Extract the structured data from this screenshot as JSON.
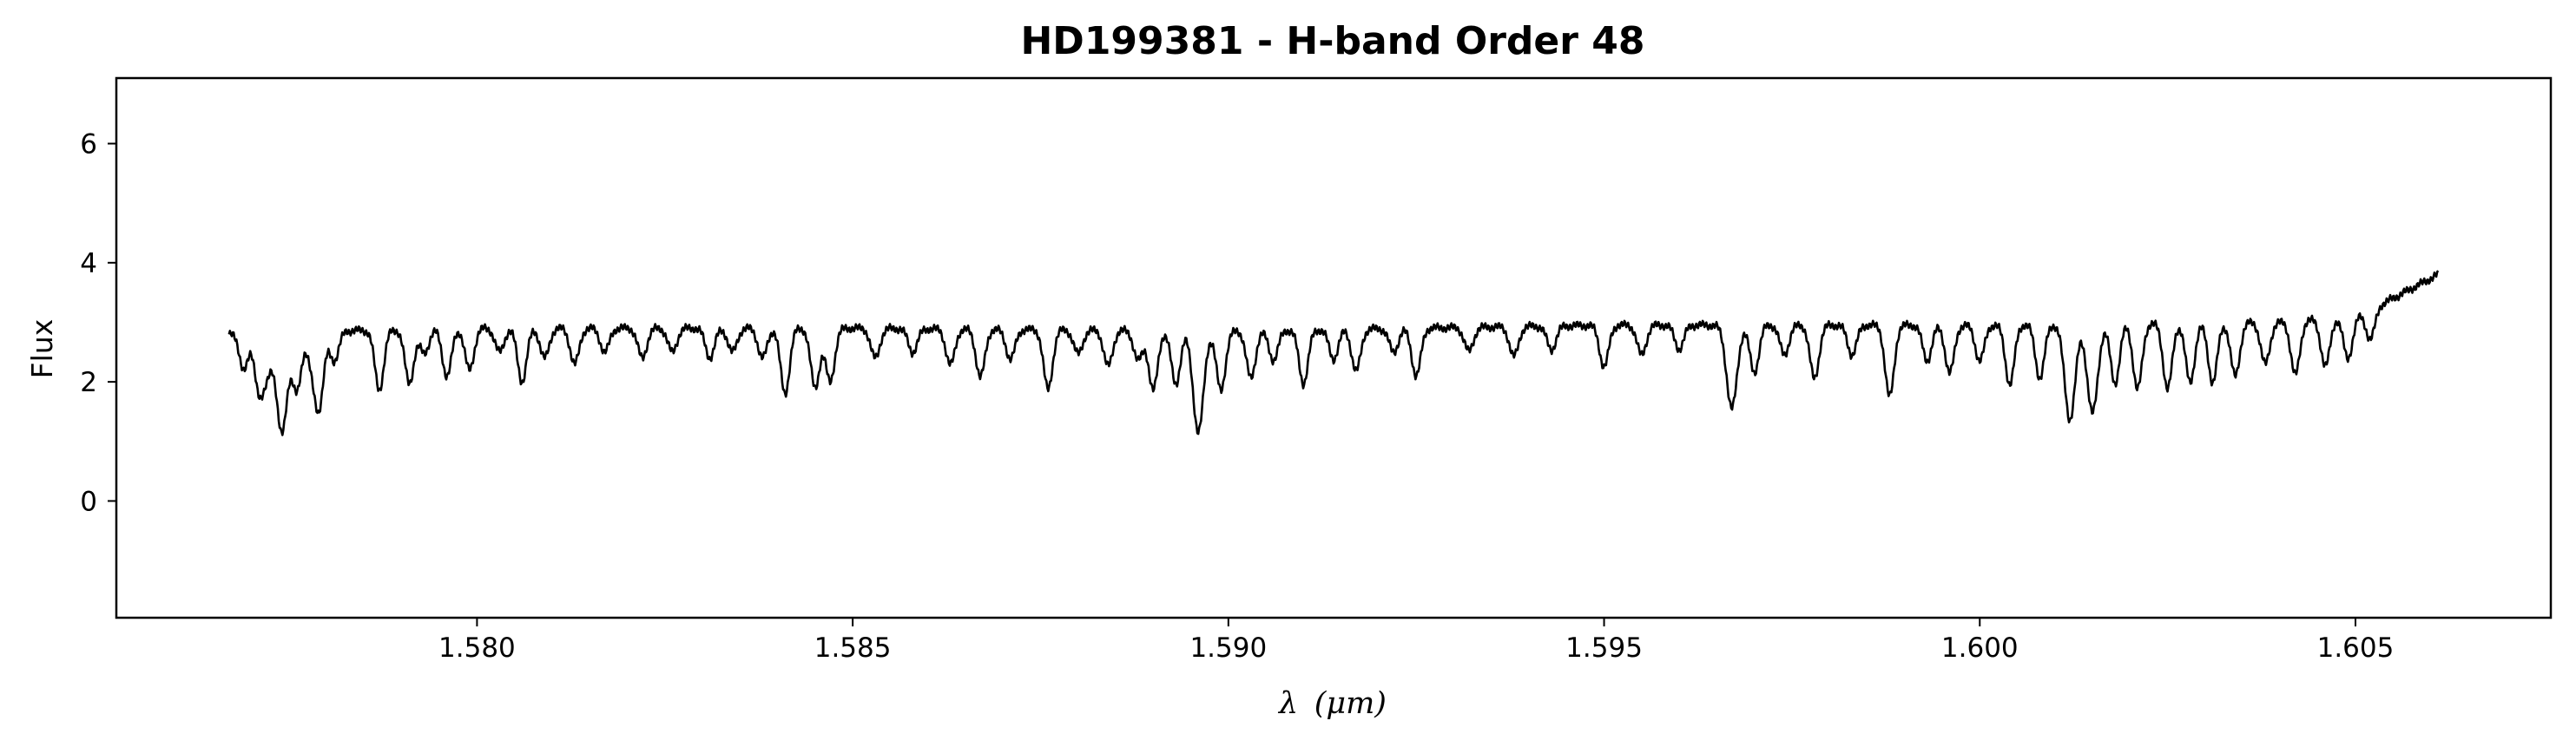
{
  "chart_data": {
    "type": "line",
    "title": "HD199381 - H-band Order 48",
    "xlabel_symbol": "λ",
    "xlabel_unit": "(μm)",
    "ylabel": "Flux",
    "xlim": [
      1.5752,
      1.6076
    ],
    "ylim": [
      -1.96,
      7.1
    ],
    "xticks": [
      1.58,
      1.585,
      1.59,
      1.595,
      1.6,
      1.605
    ],
    "xtick_labels": [
      "1.580",
      "1.585",
      "1.590",
      "1.595",
      "1.600",
      "1.605"
    ],
    "yticks": [
      0,
      2,
      4,
      6
    ],
    "ytick_labels": [
      "0",
      "2",
      "4",
      "6"
    ],
    "grid": false,
    "line_color": "#000000",
    "series": [
      {
        "continuum": [
          [
            1.5767,
            2.8
          ],
          [
            1.578,
            2.85
          ],
          [
            1.58,
            2.9
          ],
          [
            1.585,
            2.9
          ],
          [
            1.59,
            2.85
          ],
          [
            1.595,
            2.95
          ],
          [
            1.6,
            2.95
          ],
          [
            1.604,
            3.0
          ],
          [
            1.605,
            3.1
          ],
          [
            1.6055,
            3.4
          ],
          [
            1.6061,
            3.8
          ]
        ],
        "absorption_lines": [
          [
            1.5769,
            0.6,
            6e-05
          ],
          [
            1.5771,
            0.9,
            6e-05
          ],
          [
            1.5772,
            0.6,
            6e-05
          ],
          [
            1.5774,
            1.7,
            7e-05
          ],
          [
            1.5776,
            1.0,
            6e-05
          ],
          [
            1.5778,
            0.5,
            6e-05
          ],
          [
            1.5779,
            1.2,
            6e-05
          ],
          [
            1.5781,
            0.5,
            6e-05
          ],
          [
            1.5787,
            1.0,
            6e-05
          ],
          [
            1.5791,
            0.9,
            6e-05
          ],
          [
            1.5793,
            0.4,
            6e-05
          ],
          [
            1.5796,
            0.8,
            6e-05
          ],
          [
            1.5799,
            0.7,
            6e-05
          ],
          [
            1.5803,
            0.4,
            6e-05
          ],
          [
            1.5806,
            0.9,
            6e-05
          ],
          [
            1.5809,
            0.5,
            6e-05
          ],
          [
            1.5813,
            0.6,
            6e-05
          ],
          [
            1.5817,
            0.4,
            6e-05
          ],
          [
            1.5822,
            0.5,
            6e-05
          ],
          [
            1.5826,
            0.4,
            6e-05
          ],
          [
            1.5831,
            0.5,
            6e-05
          ],
          [
            1.5834,
            0.4,
            6e-05
          ],
          [
            1.5838,
            0.5,
            6e-05
          ],
          [
            1.5841,
            1.1,
            6e-05
          ],
          [
            1.5845,
            1.0,
            6e-05
          ],
          [
            1.5847,
            0.9,
            6e-05
          ],
          [
            1.5853,
            0.5,
            6e-05
          ],
          [
            1.5858,
            0.4,
            6e-05
          ],
          [
            1.5863,
            0.6,
            6e-05
          ],
          [
            1.5867,
            0.8,
            6e-05
          ],
          [
            1.5871,
            0.5,
            6e-05
          ],
          [
            1.5876,
            1.0,
            6e-05
          ],
          [
            1.588,
            0.4,
            6e-05
          ],
          [
            1.5884,
            0.6,
            6e-05
          ],
          [
            1.5888,
            0.5,
            6e-05
          ],
          [
            1.589,
            1.0,
            6e-05
          ],
          [
            1.5893,
            0.9,
            6e-05
          ],
          [
            1.5896,
            1.7,
            7e-05
          ],
          [
            1.5899,
            1.0,
            6e-05
          ],
          [
            1.5903,
            0.8,
            6e-05
          ],
          [
            1.5906,
            0.5,
            6e-05
          ],
          [
            1.591,
            0.9,
            6e-05
          ],
          [
            1.5914,
            0.5,
            6e-05
          ],
          [
            1.5917,
            0.7,
            6e-05
          ],
          [
            1.5922,
            0.4,
            6e-05
          ],
          [
            1.5925,
            0.8,
            6e-05
          ],
          [
            1.5932,
            0.4,
            6e-05
          ],
          [
            1.5938,
            0.5,
            6e-05
          ],
          [
            1.5943,
            0.4,
            6e-05
          ],
          [
            1.595,
            0.7,
            6e-05
          ],
          [
            1.5955,
            0.5,
            6e-05
          ],
          [
            1.596,
            0.4,
            6e-05
          ],
          [
            1.5967,
            1.4,
            7e-05
          ],
          [
            1.597,
            0.8,
            6e-05
          ],
          [
            1.5974,
            0.5,
            6e-05
          ],
          [
            1.5978,
            0.9,
            6e-05
          ],
          [
            1.5983,
            0.5,
            6e-05
          ],
          [
            1.5988,
            1.2,
            6e-05
          ],
          [
            1.5993,
            0.6,
            6e-05
          ],
          [
            1.5996,
            0.8,
            6e-05
          ],
          [
            1.6,
            0.6,
            6e-05
          ],
          [
            1.6004,
            1.0,
            6e-05
          ],
          [
            1.6008,
            0.9,
            6e-05
          ],
          [
            1.6012,
            1.6,
            7e-05
          ],
          [
            1.6015,
            1.5,
            7e-05
          ],
          [
            1.6018,
            1.0,
            6e-05
          ],
          [
            1.6021,
            1.1,
            6e-05
          ],
          [
            1.6025,
            1.1,
            6e-05
          ],
          [
            1.6028,
            1.0,
            6e-05
          ],
          [
            1.6031,
            1.0,
            6e-05
          ],
          [
            1.6034,
            0.9,
            6e-05
          ],
          [
            1.6038,
            0.7,
            6e-05
          ],
          [
            1.6042,
            0.9,
            6e-05
          ],
          [
            1.6046,
            0.8,
            6e-05
          ],
          [
            1.6049,
            0.7,
            6e-05
          ],
          [
            1.6052,
            0.5,
            6e-05
          ]
        ]
      }
    ]
  }
}
